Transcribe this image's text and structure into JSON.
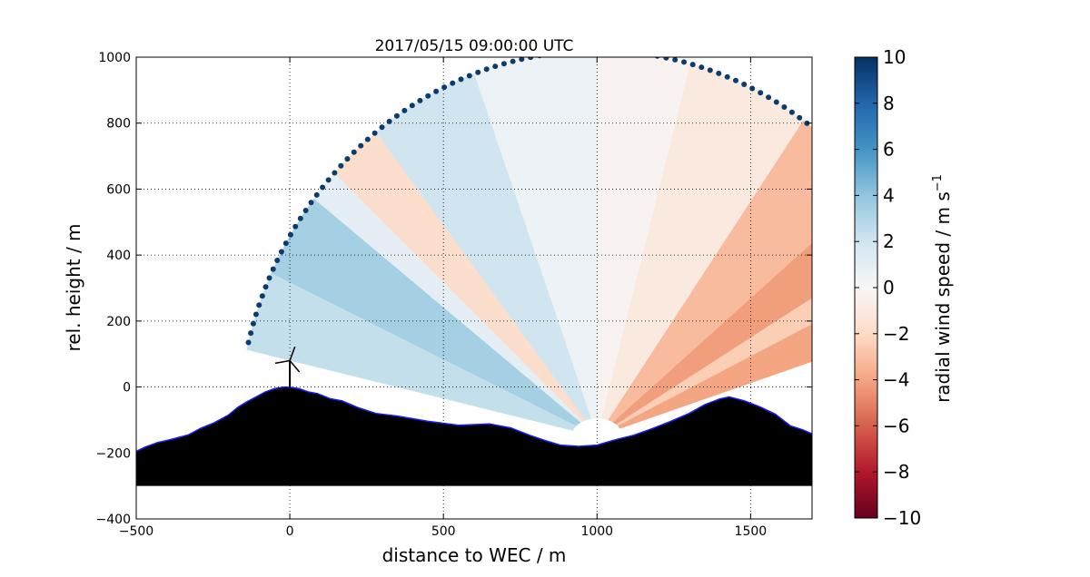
{
  "chart_data": {
    "type": "heatmap",
    "title": "2017/05/15 09:00:00 UTC",
    "xlabel": "distance to WEC / m",
    "ylabel": "rel. height / m",
    "xlim": [
      -500,
      1700
    ],
    "ylim": [
      -400,
      1000
    ],
    "xticks": [
      -500,
      0,
      500,
      1000,
      1500
    ],
    "xtick_labels": [
      "−500",
      "0",
      "500",
      "1000",
      "1500"
    ],
    "yticks": [
      -400,
      -200,
      0,
      200,
      400,
      600,
      800,
      1000
    ],
    "ytick_labels": [
      "−400",
      "−200",
      "0",
      "200",
      "400",
      "600",
      "800",
      "1000"
    ],
    "grid": true,
    "grid_style": "dotted",
    "scan": {
      "lidar_position": [
        1000,
        -150
      ],
      "range_max": 1170,
      "azimuth_min_deg": 18,
      "azimuth_max_deg": 167,
      "ring_marker_color": "#0b3c6d",
      "sector_values": [
        {
          "from_deg": 18,
          "to_deg": 26,
          "value": -4.0
        },
        {
          "from_deg": 26,
          "to_deg": 31,
          "value": -2.5
        },
        {
          "from_deg": 31,
          "to_deg": 40,
          "value": -4.2
        },
        {
          "from_deg": 40,
          "to_deg": 55,
          "value": -3.2
        },
        {
          "from_deg": 55,
          "to_deg": 75,
          "value": -1.0
        },
        {
          "from_deg": 75,
          "to_deg": 90,
          "value": -0.3
        },
        {
          "from_deg": 90,
          "to_deg": 110,
          "value": 0.6
        },
        {
          "from_deg": 110,
          "to_deg": 128,
          "value": 2.0
        },
        {
          "from_deg": 128,
          "to_deg": 137,
          "value": -1.8
        },
        {
          "from_deg": 137,
          "to_deg": 142,
          "value": 1.0
        },
        {
          "from_deg": 142,
          "to_deg": 155,
          "value": 3.4
        },
        {
          "from_deg": 155,
          "to_deg": 167,
          "value": 2.4
        }
      ]
    },
    "terrain": {
      "color": "#000000",
      "outline_color": "#1a1aff",
      "base": -300,
      "profile": [
        [
          -500,
          -195
        ],
        [
          -470,
          -182
        ],
        [
          -430,
          -168
        ],
        [
          -400,
          -162
        ],
        [
          -370,
          -155
        ],
        [
          -330,
          -145
        ],
        [
          -290,
          -125
        ],
        [
          -250,
          -110
        ],
        [
          -200,
          -85
        ],
        [
          -170,
          -62
        ],
        [
          -140,
          -45
        ],
        [
          -110,
          -30
        ],
        [
          -80,
          -15
        ],
        [
          -50,
          -5
        ],
        [
          -20,
          0
        ],
        [
          0,
          -1
        ],
        [
          30,
          -5
        ],
        [
          60,
          -15
        ],
        [
          90,
          -20
        ],
        [
          130,
          -35
        ],
        [
          170,
          -42
        ],
        [
          220,
          -62
        ],
        [
          280,
          -80
        ],
        [
          350,
          -88
        ],
        [
          450,
          -104
        ],
        [
          550,
          -116
        ],
        [
          650,
          -112
        ],
        [
          720,
          -124
        ],
        [
          780,
          -146
        ],
        [
          830,
          -162
        ],
        [
          880,
          -176
        ],
        [
          940,
          -180
        ],
        [
          1000,
          -176
        ],
        [
          1060,
          -160
        ],
        [
          1120,
          -146
        ],
        [
          1180,
          -126
        ],
        [
          1240,
          -104
        ],
        [
          1300,
          -80
        ],
        [
          1350,
          -54
        ],
        [
          1400,
          -36
        ],
        [
          1430,
          -30
        ],
        [
          1480,
          -42
        ],
        [
          1530,
          -60
        ],
        [
          1580,
          -82
        ],
        [
          1630,
          -118
        ],
        [
          1670,
          -130
        ],
        [
          1700,
          -142
        ]
      ]
    },
    "turbine": {
      "x": 0,
      "hub_height": 80,
      "rotor_radius": 45
    },
    "colorbar": {
      "label": "radial wind speed / m s",
      "label_exponent": "−1",
      "vmin": -10,
      "vmax": 10,
      "ticks": [
        10,
        8,
        6,
        4,
        2,
        0,
        -2,
        -4,
        -6,
        -8,
        -10
      ],
      "tick_labels": [
        "10",
        "8",
        "6",
        "4",
        "2",
        "0",
        "−2",
        "−4",
        "−6",
        "−8",
        "−10"
      ],
      "colormap": "RdBu",
      "colors": [
        "#67001f",
        "#b2182b",
        "#d6604d",
        "#f4a582",
        "#fddbc7",
        "#f7f7f7",
        "#d1e5f0",
        "#92c5de",
        "#4393c3",
        "#2166ac",
        "#053061"
      ]
    }
  }
}
